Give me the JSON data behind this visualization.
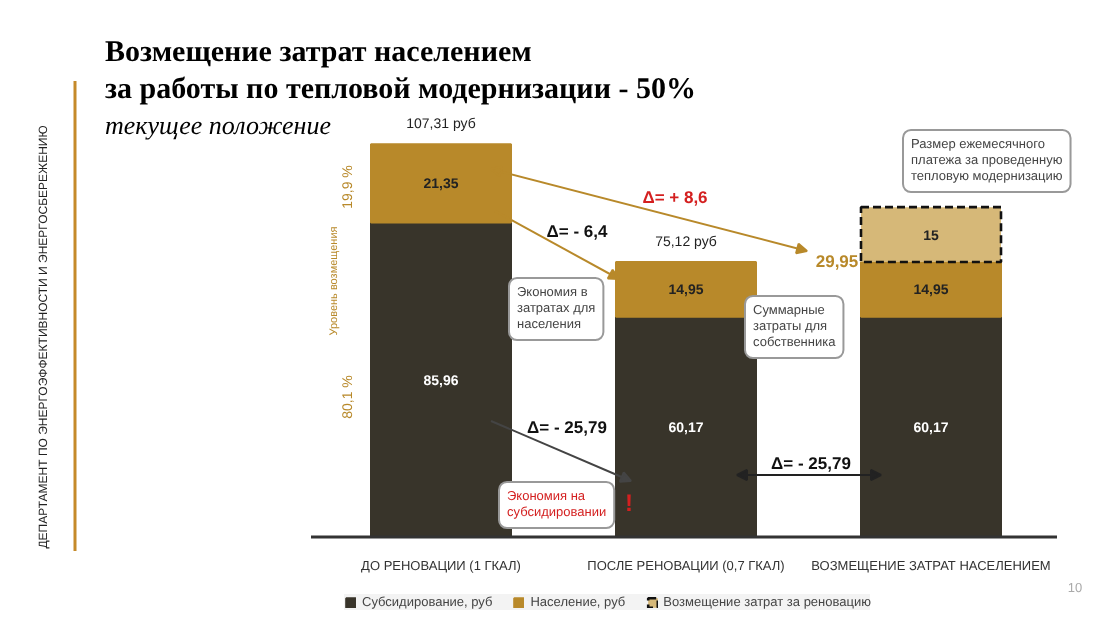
{
  "chart_data": {
    "type": "bar",
    "stacked": true,
    "title": "Возмещение затрат населением\nза работы по тепловой модернизации - 50%",
    "subtitle": "текущее положение",
    "categories": [
      "ДО РЕНОВАЦИИ (1 ГКАЛ)",
      "ПОСЛЕ РЕНОВАЦИИ (0,7 ГКАЛ)",
      "ВОЗМЕЩЕНИЕ ЗАТРАТ НАСЕЛЕНИЕМ"
    ],
    "series": [
      {
        "name": "Субсидирование, руб",
        "color": "#38342a",
        "values": [
          85.96,
          60.17,
          60.17
        ],
        "value_labels": [
          "85,96",
          "60,17",
          "60,17"
        ]
      },
      {
        "name": "Население, руб",
        "color": "#b8892a",
        "values": [
          21.35,
          14.95,
          14.95
        ],
        "value_labels": [
          "21,35",
          "14,95",
          "14,95"
        ]
      },
      {
        "name": "Возмещение затрат за реновацию",
        "color": "#d6b878",
        "values": [
          null,
          null,
          15
        ],
        "value_labels": [
          null,
          null,
          "15"
        ],
        "line_style": "dashed"
      }
    ],
    "totals": [
      "107,31 руб",
      "75,12 руб",
      null
    ],
    "legend": "bottom",
    "annotations": [
      "Δ= + 8,6",
      "Δ= - 6,4",
      "Экономия в\nзатратах для\nнаселения",
      "Суммарные\nзатраты для\nсобственника",
      "29,95",
      "Размер ежемесячного\nплатежа за проведенную\nтепловую модернизацию",
      "Δ= - 25,79",
      "Δ= - 25,79",
      "Экономия на\nсубсидировании",
      "!",
      "19,9 %",
      "Уровень возмещения",
      "80,1 %",
      "ДЕПАРТАМЕНТ ПО ЭНЕРГОЭФФЕКТИВНОСТИ И ЭНЕРГОСБЕРЕЖЕНИЮ",
      "10"
    ]
  }
}
